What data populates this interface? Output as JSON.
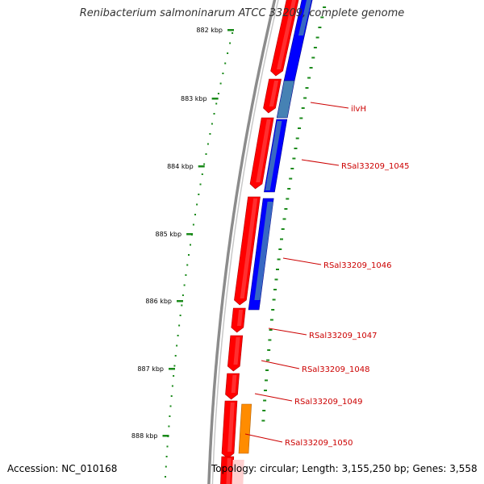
{
  "title": "Renibacterium salmoninarum ATCC 33209, complete genome",
  "accession_text": "Accession: NC_010168",
  "summary_text": "Topology: circular; Length: 3,155,250 bp; Genes: 3,558",
  "colors": {
    "backbone": "#8c8c8c",
    "ticks": "#1a8a1a",
    "forward": "#ff0000",
    "reverse": "#0000ff",
    "reverse_alt": "#4682b4",
    "rna": "#ff8c00",
    "label": "#cc0000"
  },
  "axis": {
    "kbp_ticks": [
      "882 kbp",
      "883 kbp",
      "884 kbp",
      "885 kbp",
      "886 kbp",
      "887 kbp",
      "888 kbp"
    ]
  },
  "gene_labels": [
    "ilvH",
    "RSal33209_1045",
    "RSal33209_1046",
    "RSal33209_1047",
    "RSal33209_1048",
    "RSal33209_1049",
    "RSal33209_1050"
  ]
}
